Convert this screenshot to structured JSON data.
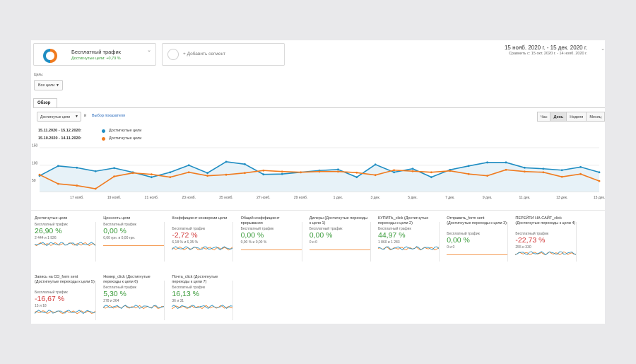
{
  "segments": {
    "active": {
      "title": "Бесплатный трафик",
      "subtitle": "Достигнутые цели: +0,79 %"
    },
    "add_label": "+ Добавить сегмент"
  },
  "date_range": {
    "main": "15 нояб. 2020 г. - 15 дек. 2020 г.",
    "compare": "Сравнить с: 15 окт. 2020 г. - 14 нояб. 2020 г."
  },
  "goal_filter": {
    "label": "Цель:",
    "value": "Все цели"
  },
  "tabs": [
    "Обзор"
  ],
  "controls": {
    "metric": "Достигнутые цели",
    "and": "и",
    "pick_metric": "Выбор показателя",
    "granularity": [
      "Час",
      "День",
      "Неделя",
      "Месяц"
    ],
    "granularity_active": "День"
  },
  "legend": [
    {
      "range": "15.11.2020 - 15.12.2020:",
      "name": "Достигнутые цели",
      "color": "#1f8dc2"
    },
    {
      "range": "15.10.2020 - 14.11.2020:",
      "name": "Достигнутые цели",
      "color": "#f07b1f"
    }
  ],
  "chart_data": {
    "type": "line",
    "x": [
      "15 нояб.",
      "16 нояб.",
      "17 нояб.",
      "18 нояб.",
      "19 нояб.",
      "20 нояб.",
      "21 нояб.",
      "22 нояб.",
      "23 нояб.",
      "24 нояб.",
      "25 нояб.",
      "26 нояб.",
      "27 нояб.",
      "28 нояб.",
      "29 нояб.",
      "30 нояб.",
      "1 дек.",
      "2 дек.",
      "3 дек.",
      "4 дек.",
      "5 дек.",
      "6 дек.",
      "7 дек.",
      "8 дек.",
      "9 дек.",
      "10 дек.",
      "11 дек.",
      "12 дек.",
      "13 дек.",
      "14 дек.",
      "15 дек."
    ],
    "x_tick_labels": [
      "17 нояб.",
      "19 нояб.",
      "21 нояб.",
      "23 нояб.",
      "25 нояб.",
      "27 нояб.",
      "29 нояб.",
      "1 дек.",
      "3 дек.",
      "5 дек.",
      "7 дек.",
      "9 дек.",
      "11 дек.",
      "13 дек.",
      "15 дек."
    ],
    "y_tick_labels": [
      "150",
      "100",
      "50"
    ],
    "ylim": [
      25,
      150
    ],
    "series": [
      {
        "color": "#1f8dc2",
        "values": [
          70,
          98,
          93,
          83,
          92,
          80,
          66,
          80,
          100,
          78,
          110,
          103,
          74,
          75,
          80,
          85,
          88,
          66,
          102,
          80,
          90,
          66,
          87,
          98,
          108,
          108,
          93,
          90,
          86,
          95,
          80
        ]
      },
      {
        "color": "#f07b1f",
        "values": [
          73,
          47,
          42,
          33,
          68,
          78,
          74,
          66,
          80,
          70,
          73,
          78,
          85,
          82,
          80,
          82,
          82,
          79,
          72,
          86,
          83,
          80,
          84,
          75,
          70,
          87,
          82,
          80,
          67,
          75,
          55
        ]
      }
    ]
  },
  "cards": [
    {
      "title": "Достигнутые цели",
      "source": "Бесплатный трафик",
      "value": "26,90 %",
      "sub": "2 444 и 1 926",
      "trend": "pos",
      "spark": "lines"
    },
    {
      "title": "Ценность цели",
      "source": "Бесплатный трафик",
      "value": "0,00 %",
      "sub": "0,00 грн. и 0,00 грн.",
      "trend": "pos",
      "spark": "flat"
    },
    {
      "title": "Коэффициент конверсии цели",
      "source": "Бесплатный трафик",
      "value": "-2,72 %",
      "sub": "6,18 % и 6,35 %",
      "trend": "neg",
      "spark": "lines"
    },
    {
      "title": "Общий коэффициент прерывания",
      "source": "Бесплатный трафик",
      "value": "0,00 %",
      "sub": "0,00 % и 0,00 %",
      "trend": "pos",
      "spark": "flat"
    },
    {
      "title": "Дилеры (Достигнутые переходы к цели 1)",
      "source": "Бесплатный трафик",
      "value": "0,00 %",
      "sub": "0 и 0",
      "trend": "pos",
      "spark": "flat"
    },
    {
      "title": "КУПИТЬ_click (Достигнутые переходы к цели 2)",
      "source": "Бесплатный трафик",
      "value": "44,97 %",
      "sub": "1 860 и 1 283",
      "trend": "pos",
      "spark": "lines"
    },
    {
      "title": "Отправить_form sent (Достигнутые переходы к цели 3)",
      "source": "Бесплатный трафик",
      "value": "0,00 %",
      "sub": "0 и 0",
      "trend": "pos",
      "spark": "flat"
    },
    {
      "title": "ПЕРЕЙТИ НА САЙТ_click (Достигнутые переходы к цели 4)",
      "source": "Бесплатный трафик",
      "value": "-22,73 %",
      "sub": "255 и 330",
      "trend": "neg",
      "spark": "lines"
    },
    {
      "title": "Запись на СО_form sent (Достигнутые переходы к цели 5)",
      "source": "Бесплатный трафик",
      "value": "-16,67 %",
      "sub": "15 и 18",
      "trend": "neg",
      "spark": "lines"
    },
    {
      "title": "Номер_click (Достигнутые переходы к цели 6)",
      "source": "Бесплатный трафик",
      "value": "5,30 %",
      "sub": "278 и 264",
      "trend": "pos",
      "spark": "lines"
    },
    {
      "title": "Почта_click (Достигнутые переходы к цели 7)",
      "source": "Бесплатный трафик",
      "value": "16,13 %",
      "sub": "36 и 31",
      "trend": "pos",
      "spark": "lines"
    }
  ]
}
